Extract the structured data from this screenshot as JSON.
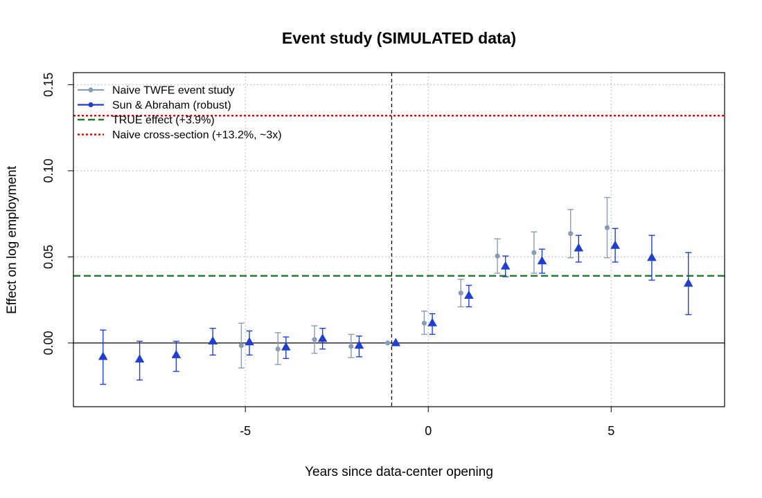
{
  "chart_data": {
    "type": "scatter",
    "title": "Event study (SIMULATED data)",
    "xlabel": "Years since data-center opening",
    "ylabel": "Effect on log employment",
    "xlim": [
      -9.7,
      8.1
    ],
    "ylim": [
      -0.037,
      0.157
    ],
    "x_ticks": [
      -5,
      0,
      5
    ],
    "x_tick_labels": [
      "-5",
      "0",
      "5"
    ],
    "y_ticks": [
      0.0,
      0.05,
      0.1,
      0.15
    ],
    "y_tick_labels": [
      "0.00",
      "0.05",
      "0.10",
      "0.15"
    ],
    "grid": true,
    "legend_position": "top-left",
    "series": [
      {
        "name": "Naive TWFE event study",
        "marker": "circle",
        "color": "#8a9bb4",
        "points": [
          {
            "x": -5,
            "y": -0.0015,
            "lo": -0.0145,
            "hi": 0.0115
          },
          {
            "x": -4,
            "y": -0.0035,
            "lo": -0.0125,
            "hi": 0.006
          },
          {
            "x": -3,
            "y": 0.002,
            "lo": -0.006,
            "hi": 0.01
          },
          {
            "x": -2,
            "y": -0.002,
            "lo": -0.0085,
            "hi": 0.005
          },
          {
            "x": -1,
            "y": 0.0,
            "lo": null,
            "hi": null
          },
          {
            "x": 0,
            "y": 0.0115,
            "lo": 0.005,
            "hi": 0.0185
          },
          {
            "x": 1,
            "y": 0.029,
            "lo": 0.021,
            "hi": 0.037
          },
          {
            "x": 2,
            "y": 0.0505,
            "lo": 0.0405,
            "hi": 0.0605
          },
          {
            "x": 3,
            "y": 0.0525,
            "lo": 0.0405,
            "hi": 0.0645
          },
          {
            "x": 4,
            "y": 0.0635,
            "lo": 0.0495,
            "hi": 0.0775
          },
          {
            "x": 5,
            "y": 0.067,
            "lo": 0.0495,
            "hi": 0.0845
          }
        ]
      },
      {
        "name": "Sun & Abraham (robust)",
        "marker": "triangle",
        "color": "#1f3fcc",
        "points": [
          {
            "x": -9,
            "y": -0.008,
            "lo": -0.024,
            "hi": 0.0075
          },
          {
            "x": -8,
            "y": -0.0095,
            "lo": -0.0215,
            "hi": 0.001
          },
          {
            "x": -7,
            "y": -0.007,
            "lo": -0.0165,
            "hi": 0.001
          },
          {
            "x": -6,
            "y": 0.001,
            "lo": -0.007,
            "hi": 0.0085
          },
          {
            "x": -5,
            "y": 0.0005,
            "lo": -0.007,
            "hi": 0.007
          },
          {
            "x": -4,
            "y": -0.0025,
            "lo": -0.009,
            "hi": 0.0035
          },
          {
            "x": -3,
            "y": 0.0025,
            "lo": -0.0035,
            "hi": 0.0085
          },
          {
            "x": -2,
            "y": -0.0015,
            "lo": -0.008,
            "hi": 0.004
          },
          {
            "x": -1,
            "y": 0.0,
            "lo": null,
            "hi": null
          },
          {
            "x": 0,
            "y": 0.0115,
            "lo": 0.005,
            "hi": 0.017
          },
          {
            "x": 1,
            "y": 0.0275,
            "lo": 0.021,
            "hi": 0.0335
          },
          {
            "x": 2,
            "y": 0.0445,
            "lo": 0.0385,
            "hi": 0.0505
          },
          {
            "x": 3,
            "y": 0.0475,
            "lo": 0.0405,
            "hi": 0.0545
          },
          {
            "x": 4,
            "y": 0.055,
            "lo": 0.047,
            "hi": 0.0625
          },
          {
            "x": 5,
            "y": 0.0565,
            "lo": 0.047,
            "hi": 0.0665
          },
          {
            "x": 6,
            "y": 0.0495,
            "lo": 0.0365,
            "hi": 0.0625
          },
          {
            "x": 7,
            "y": 0.0345,
            "lo": 0.0165,
            "hi": 0.0525
          }
        ]
      }
    ],
    "reference_lines": [
      {
        "name": "TRUE effect (+3.9%)",
        "orientation": "horizontal",
        "value": 0.039,
        "style": "dashed",
        "color": "#1a7a2a"
      },
      {
        "name": "Naive cross-section (+13.2%, ~3x)",
        "orientation": "horizontal",
        "value": 0.132,
        "style": "dotted",
        "color": "#c81414"
      },
      {
        "orientation": "vertical",
        "value": -1,
        "style": "dashed",
        "color": "#000000"
      },
      {
        "orientation": "horizontal",
        "value": 0,
        "style": "solid",
        "color": "#000000"
      }
    ],
    "legend": [
      {
        "label": "Naive TWFE event study",
        "kind": "line-circle",
        "color": "#8a9bb4"
      },
      {
        "label": "Sun & Abraham (robust)",
        "kind": "line-circle",
        "color": "#1f3fcc"
      },
      {
        "label": "TRUE effect (+3.9%)",
        "kind": "dashed",
        "color": "#1a7a2a"
      },
      {
        "label": "Naive cross-section (+13.2%, ~3x)",
        "kind": "dotted",
        "color": "#c81414"
      }
    ]
  }
}
